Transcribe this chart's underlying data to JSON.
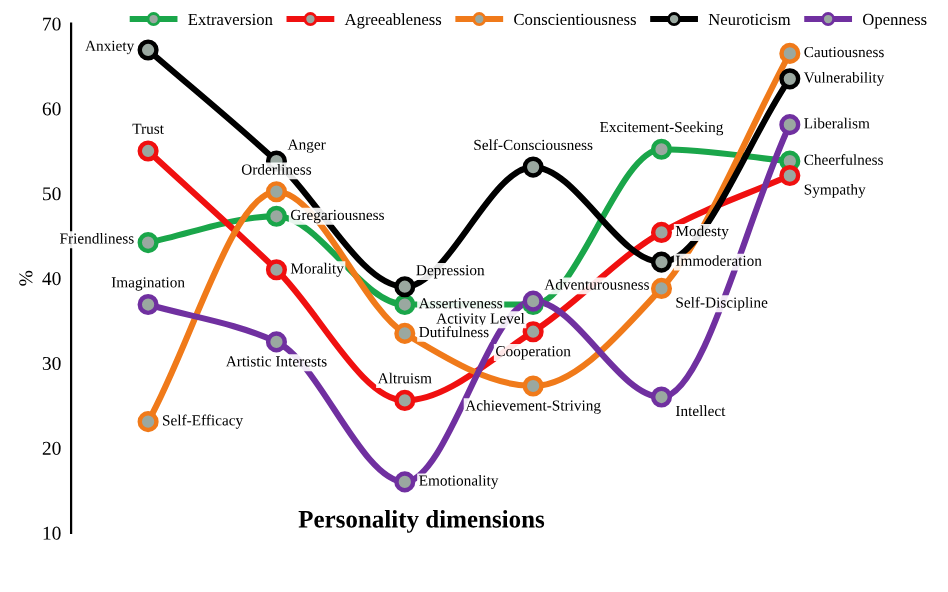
{
  "chart_data": {
    "type": "line",
    "xlabel": "Personality dimensions",
    "ylabel": "%",
    "categories": [
      null,
      null,
      null,
      null,
      null,
      null
    ],
    "ylim": [
      10,
      70
    ],
    "yticks": [
      10,
      20,
      30,
      40,
      50,
      60,
      70
    ],
    "grid": false,
    "legend": "top",
    "marker": "circle",
    "line_style": "solid",
    "tick_labels": "y",
    "series": [
      {
        "name": "Extraversion",
        "color": "#1aa64a",
        "values": [
          44.2,
          47.3,
          36.9,
          36.9,
          55.2,
          53.8
        ],
        "value_labels": [
          "Friendliness",
          "Gregariousness",
          "Assertiveness",
          "Activity Level",
          "Excitement-Seeking",
          "Cheerfulness"
        ]
      },
      {
        "name": "Agreeableness",
        "color": "#f01010",
        "values": [
          55,
          41,
          25.6,
          33.7,
          45.4,
          52.1
        ],
        "value_labels": [
          "Trust",
          "Morality",
          "Altruism",
          "Cooperation",
          "Modesty",
          "Sympathy"
        ]
      },
      {
        "name": "Conscientiousness",
        "color": "#f07a1a",
        "values": [
          23.1,
          50.2,
          33.5,
          27.3,
          38.8,
          66.5
        ],
        "value_labels": [
          "Self-Efficacy",
          "Orderliness",
          "Dutifulness",
          "Achievement-Striving",
          "Self-Discipline",
          "Cautiousness"
        ]
      },
      {
        "name": "Neuroticism",
        "color": "#000000",
        "values": [
          66.9,
          53.8,
          39,
          53.1,
          41.9,
          63.5
        ],
        "value_labels": [
          "Anxiety",
          "Anger",
          "Depression",
          "Self-Consciousness",
          "Immoderation",
          "Vulnerability"
        ]
      },
      {
        "name": "Openness",
        "color": "#7030a0",
        "values": [
          36.9,
          32.5,
          16,
          37.3,
          26,
          58.1
        ],
        "value_labels": [
          "Imagination",
          "Artistic Interests",
          "Emotionality",
          "Adventurousness",
          "Intellect",
          "Liberalism"
        ]
      }
    ]
  }
}
